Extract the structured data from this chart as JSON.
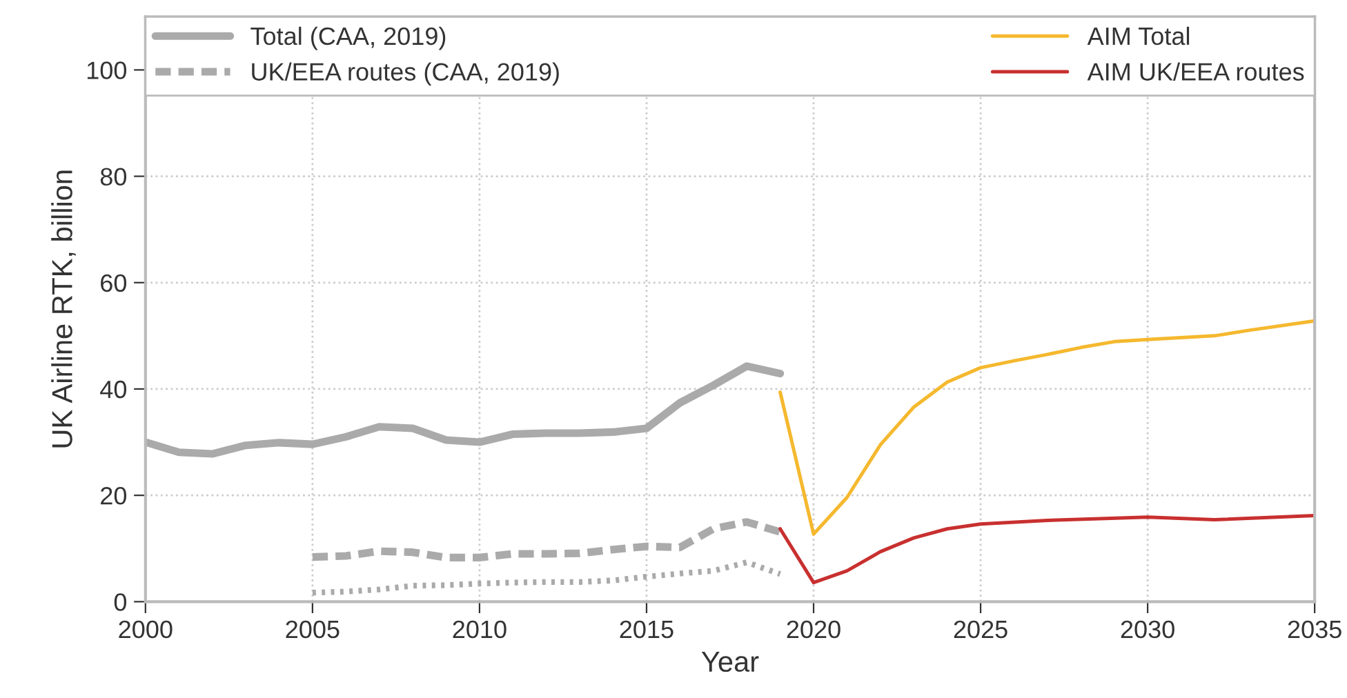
{
  "chart_data": {
    "type": "line",
    "xlabel": "Year",
    "ylabel": "UK Airline RTK, billion",
    "xlim": [
      2000,
      2035
    ],
    "xticks": [
      2000,
      2005,
      2010,
      2015,
      2020,
      2025,
      2030,
      2035
    ],
    "ylim": [
      0,
      110
    ],
    "yticks": [
      0,
      20,
      40,
      60,
      80,
      100
    ],
    "grid": true,
    "legend": "top",
    "series": [
      {
        "name": "Total (CAA, 2019)",
        "color": "#aaaaaa",
        "line_style": "solid",
        "x": [
          2000,
          2001,
          2002,
          2003,
          2004,
          2005,
          2006,
          2007,
          2008,
          2009,
          2010,
          2011,
          2012,
          2013,
          2014,
          2015,
          2016,
          2017,
          2018,
          2019
        ],
        "values": [
          30,
          28.1,
          27.8,
          29.4,
          29.9,
          29.6,
          31,
          32.9,
          32.6,
          30.4,
          30,
          31.5,
          31.7,
          31.7,
          31.9,
          32.6,
          37.4,
          40.7,
          44.3,
          42.9
        ]
      },
      {
        "name": "UK/EEA routes (CAA, 2019)",
        "color": "#aaaaaa",
        "line_style": "dashed",
        "x": [
          2005,
          2006,
          2007,
          2008,
          2009,
          2010,
          2011,
          2012,
          2013,
          2014,
          2015,
          2016,
          2017,
          2018,
          2019
        ],
        "values": [
          8.4,
          8.6,
          9.5,
          9.3,
          8.3,
          8.3,
          9.0,
          9.0,
          9.1,
          9.8,
          10.4,
          10.2,
          13.7,
          15.0,
          13.1
        ]
      },
      {
        "color": "#aaaaaa",
        "line_style": "dotted",
        "x": [
          2005,
          2006,
          2007,
          2008,
          2009,
          2010,
          2011,
          2012,
          2013,
          2014,
          2015,
          2016,
          2017,
          2018,
          2019
        ],
        "values": [
          1.7,
          1.9,
          2.3,
          3.0,
          3.1,
          3.4,
          3.6,
          3.7,
          3.7,
          4.0,
          4.7,
          5.3,
          5.8,
          7.4,
          5.2
        ]
      },
      {
        "name": "AIM Total",
        "color": "#f5b82e",
        "line_style": "solid",
        "x": [
          2019,
          2020,
          2021,
          2022,
          2023,
          2024,
          2025,
          2026,
          2027,
          2028,
          2029,
          2030,
          2032,
          2033,
          2035
        ],
        "values": [
          39.4,
          12.7,
          19.6,
          29.5,
          36.6,
          41.3,
          44.0,
          45.3,
          46.5,
          47.8,
          48.9,
          49.3,
          50.0,
          51.0,
          52.8
        ]
      },
      {
        "name": "AIM UK/EEA routes",
        "color": "#c8302f",
        "line_style": "solid",
        "x": [
          2019,
          2020,
          2021,
          2022,
          2023,
          2024,
          2025,
          2027,
          2030,
          2032,
          2035
        ],
        "values": [
          13.7,
          3.6,
          5.8,
          9.4,
          12.0,
          13.7,
          14.6,
          15.3,
          15.9,
          15.4,
          16.2
        ]
      }
    ]
  }
}
